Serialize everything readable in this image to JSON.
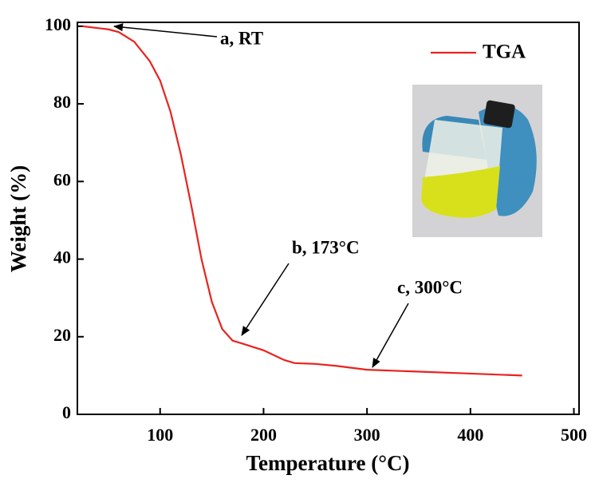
{
  "chart_data": {
    "type": "line",
    "x_label": "Temperature (°C)",
    "y_label": "Weight (%)",
    "x": [
      25,
      50,
      60,
      75,
      90,
      100,
      110,
      120,
      130,
      140,
      150,
      160,
      170,
      180,
      200,
      220,
      230,
      250,
      270,
      300,
      350,
      400,
      450
    ],
    "series": [
      {
        "name": "TGA",
        "color": "#e8231f",
        "values": [
          100,
          99.2,
          98.5,
          96,
          91,
          86,
          78,
          67,
          54,
          40,
          29,
          22,
          19,
          18.2,
          16.5,
          14,
          13.2,
          13,
          12.5,
          11.5,
          11,
          10.5,
          10
        ]
      }
    ],
    "xlim": [
      20,
      505
    ],
    "ylim": [
      0,
      101
    ],
    "xticks": [
      100,
      200,
      300,
      400,
      500
    ],
    "yticks": [
      0,
      20,
      40,
      60,
      80,
      100
    ],
    "annotations": [
      "a, RT",
      "b, 173°C",
      "c, 300°C"
    ],
    "legend": "top-right"
  }
}
